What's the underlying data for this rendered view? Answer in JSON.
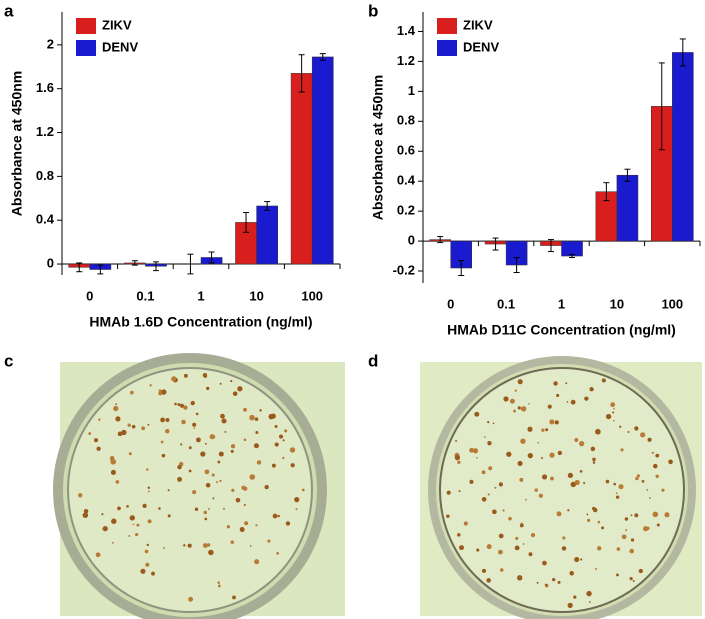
{
  "chart_data": [
    {
      "type": "bar",
      "panel_label": "a",
      "x_label": "HMAb 1.6D Concentration (ng/ml)",
      "y_label": "Absorbance at 450nm",
      "categories": [
        "0",
        "0.1",
        "1",
        "10",
        "100"
      ],
      "series": [
        {
          "name": "ZIKV",
          "color": "#d91e1e",
          "values": [
            -0.03,
            0.01,
            0.0,
            0.38,
            1.74
          ],
          "errors": [
            0.04,
            0.02,
            0.09,
            0.09,
            0.17
          ]
        },
        {
          "name": "DENV",
          "color": "#1a1acf",
          "values": [
            -0.05,
            -0.02,
            0.06,
            0.53,
            1.89
          ],
          "errors": [
            0.04,
            0.04,
            0.05,
            0.04,
            0.03
          ]
        }
      ],
      "ylim": [
        -0.1,
        2.3
      ],
      "yticks": [
        0,
        0.4,
        0.8,
        1.2,
        1.6,
        2
      ],
      "legend": "upper-left"
    },
    {
      "type": "bar",
      "panel_label": "b",
      "x_label": "HMAb D11C Concentration (ng/ml)",
      "y_label": "Absorbance at 450nm",
      "categories": [
        "0",
        "0.1",
        "1",
        "10",
        "100"
      ],
      "series": [
        {
          "name": "ZIKV",
          "color": "#d91e1e",
          "values": [
            0.01,
            -0.02,
            -0.03,
            0.33,
            0.9
          ],
          "errors": [
            0.02,
            0.04,
            0.04,
            0.06,
            0.29
          ]
        },
        {
          "name": "DENV",
          "color": "#1a1acf",
          "values": [
            -0.18,
            -0.16,
            -0.1,
            0.44,
            1.26
          ],
          "errors": [
            0.05,
            0.05,
            0.01,
            0.04,
            0.09
          ]
        }
      ],
      "ylim": [
        -0.28,
        1.53
      ],
      "yticks": [
        -0.2,
        0,
        0.2,
        0.4,
        0.6,
        0.8,
        1,
        1.2,
        1.4
      ],
      "legend": "upper-left"
    }
  ],
  "images": [
    {
      "panel_label": "c"
    },
    {
      "panel_label": "d"
    }
  ]
}
